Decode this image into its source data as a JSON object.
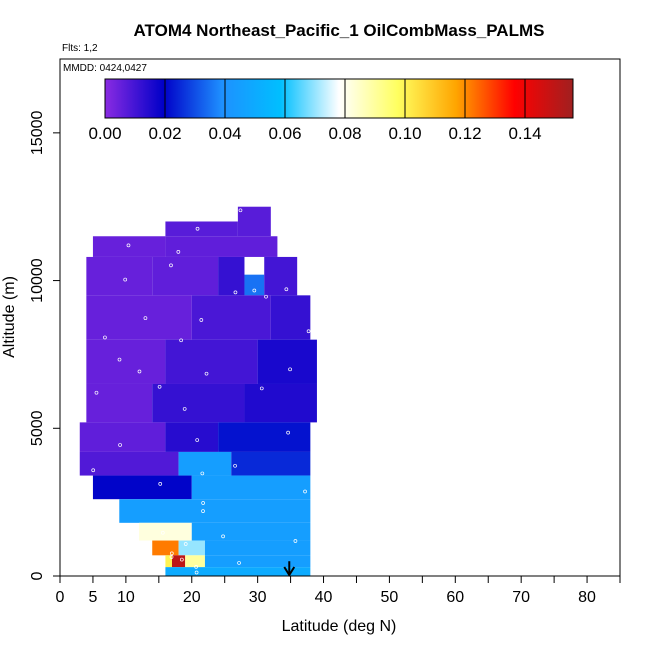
{
  "chart_data": {
    "type": "heatmap",
    "title": "ATOM4 Northeast_Pacific_1 OilCombMass_PALMS",
    "flights_label": "Flts: 1,2",
    "date_label": "MMDD: 0424,0427",
    "xlabel": "Latitude (deg N)",
    "ylabel": "Altitude (m)",
    "xlim": [
      0,
      85
    ],
    "ylim": [
      0,
      17500
    ],
    "x_ticks": [
      0,
      5,
      10,
      20,
      30,
      40,
      50,
      60,
      70,
      80
    ],
    "x_minor_ticks": [
      15,
      25,
      35,
      45,
      55,
      65,
      75,
      85
    ],
    "y_ticks": [
      0,
      5000,
      10000,
      15000
    ],
    "colorbar": {
      "min": 0.0,
      "max": 0.156,
      "ticks": [
        0.0,
        0.02,
        0.04,
        0.06,
        0.08,
        0.1,
        0.12,
        0.14
      ],
      "tick_labels": [
        "0.00",
        "0.02",
        "0.04",
        "0.06",
        "0.08",
        "0.10",
        "0.12",
        "0.14"
      ],
      "colors": [
        "#8a2be2",
        "#0000c8",
        "#1e90ff",
        "#00bfff",
        "#ffffff",
        "#ffff60",
        "#ffa500",
        "#ff0000",
        "#a02020"
      ]
    },
    "grid": false,
    "arrow_latitude": 34.8,
    "bands": [
      {
        "alt": [
          10800,
          11500
        ],
        "lat": [
          5,
          16
        ],
        "v": 0.005
      },
      {
        "alt": [
          10800,
          11500
        ],
        "lat": [
          16,
          33
        ],
        "v": 0.006
      },
      {
        "alt": [
          11500,
          12000
        ],
        "lat": [
          16,
          27
        ],
        "v": 0.007
      },
      {
        "alt": [
          11500,
          12500
        ],
        "lat": [
          27,
          32
        ],
        "v": 0.007
      },
      {
        "alt": [
          9500,
          10800
        ],
        "lat": [
          4,
          14
        ],
        "v": 0.005
      },
      {
        "alt": [
          9500,
          10800
        ],
        "lat": [
          14,
          24
        ],
        "v": 0.006
      },
      {
        "alt": [
          9500,
          10800
        ],
        "lat": [
          24,
          28
        ],
        "v": 0.012
      },
      {
        "alt": [
          9500,
          10200
        ],
        "lat": [
          28,
          31
        ],
        "v": 0.035
      },
      {
        "alt": [
          9500,
          10800
        ],
        "lat": [
          31,
          36
        ],
        "v": 0.01
      },
      {
        "alt": [
          8000,
          9500
        ],
        "lat": [
          4,
          20
        ],
        "v": 0.005
      },
      {
        "alt": [
          8000,
          9500
        ],
        "lat": [
          20,
          32
        ],
        "v": 0.009
      },
      {
        "alt": [
          8000,
          9500
        ],
        "lat": [
          32,
          38
        ],
        "v": 0.012
      },
      {
        "alt": [
          6500,
          8000
        ],
        "lat": [
          4,
          16
        ],
        "v": 0.005
      },
      {
        "alt": [
          6500,
          8000
        ],
        "lat": [
          16,
          30
        ],
        "v": 0.01
      },
      {
        "alt": [
          6500,
          8000
        ],
        "lat": [
          30,
          39
        ],
        "v": 0.016
      },
      {
        "alt": [
          5200,
          6500
        ],
        "lat": [
          4,
          14
        ],
        "v": 0.005
      },
      {
        "alt": [
          5200,
          6500
        ],
        "lat": [
          14,
          28
        ],
        "v": 0.012
      },
      {
        "alt": [
          5200,
          6500
        ],
        "lat": [
          28,
          39
        ],
        "v": 0.015
      },
      {
        "alt": [
          4200,
          5200
        ],
        "lat": [
          3,
          16
        ],
        "v": 0.006
      },
      {
        "alt": [
          4200,
          5200
        ],
        "lat": [
          16,
          24
        ],
        "v": 0.014
      },
      {
        "alt": [
          4200,
          5200
        ],
        "lat": [
          24,
          38
        ],
        "v": 0.022
      },
      {
        "alt": [
          3400,
          4200
        ],
        "lat": [
          3,
          18
        ],
        "v": 0.008
      },
      {
        "alt": [
          3400,
          4200
        ],
        "lat": [
          18,
          26
        ],
        "v": 0.045
      },
      {
        "alt": [
          3400,
          4200
        ],
        "lat": [
          26,
          38
        ],
        "v": 0.025
      },
      {
        "alt": [
          2600,
          3400
        ],
        "lat": [
          5,
          20
        ],
        "v": 0.02
      },
      {
        "alt": [
          2600,
          3400
        ],
        "lat": [
          20,
          38
        ],
        "v": 0.045
      },
      {
        "alt": [
          1800,
          2600
        ],
        "lat": [
          9,
          38
        ],
        "v": 0.045
      },
      {
        "alt": [
          1200,
          1800
        ],
        "lat": [
          12,
          20
        ],
        "v": 0.082
      },
      {
        "alt": [
          1200,
          1800
        ],
        "lat": [
          20,
          38
        ],
        "v": 0.045
      },
      {
        "alt": [
          700,
          1200
        ],
        "lat": [
          14,
          18
        ],
        "v": 0.122
      },
      {
        "alt": [
          700,
          1200
        ],
        "lat": [
          18,
          22
        ],
        "v": 0.07
      },
      {
        "alt": [
          700,
          1200
        ],
        "lat": [
          22,
          38
        ],
        "v": 0.045
      },
      {
        "alt": [
          300,
          700
        ],
        "lat": [
          16,
          17
        ],
        "v": 0.1
      },
      {
        "alt": [
          300,
          700
        ],
        "lat": [
          17,
          19
        ],
        "v": 0.15
      },
      {
        "alt": [
          300,
          700
        ],
        "lat": [
          19,
          22
        ],
        "v": 0.09
      },
      {
        "alt": [
          300,
          700
        ],
        "lat": [
          22,
          38
        ],
        "v": 0.045
      },
      {
        "alt": [
          0,
          300
        ],
        "lat": [
          16,
          38
        ],
        "v": 0.05
      }
    ]
  }
}
